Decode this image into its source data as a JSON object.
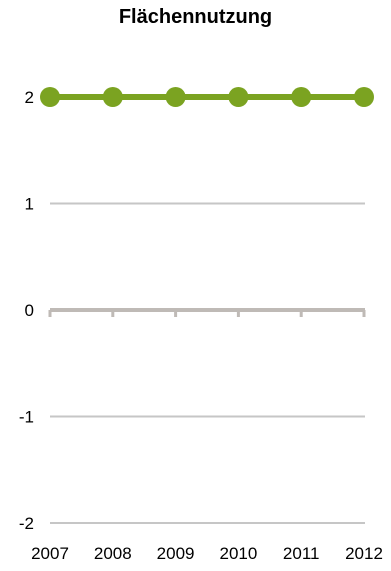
{
  "chart_data": {
    "type": "line",
    "title": "Flächennutzung",
    "xlabel": "",
    "ylabel": "",
    "categories": [
      "2007",
      "2008",
      "2009",
      "2010",
      "2011",
      "2012"
    ],
    "series": [
      {
        "values": [
          2,
          2,
          2,
          2,
          2,
          2
        ]
      }
    ],
    "ylim": [
      -2,
      2
    ],
    "yticks": [
      2,
      1,
      0,
      -1,
      -2
    ],
    "grid": true,
    "legend": "none",
    "colors": {
      "series": "#7ba321",
      "grid": "#c6c6c6",
      "axis": "#bfbab6"
    }
  }
}
